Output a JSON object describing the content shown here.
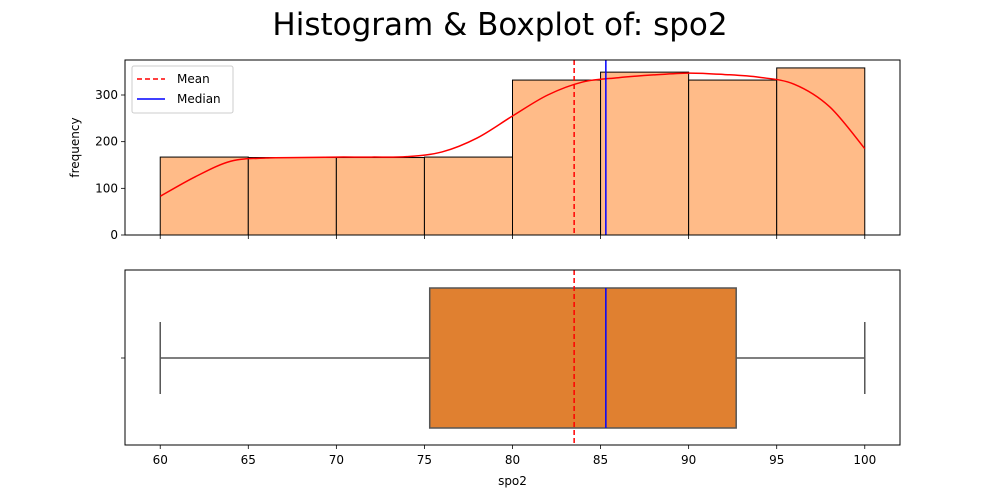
{
  "chart_data": [
    {
      "type": "bar",
      "panel": "histogram",
      "title": "Histogram & Boxplot of: spo2",
      "xlabel": "",
      "ylabel": "frequency",
      "bin_edges": [
        60,
        65,
        70,
        75,
        80,
        85,
        90,
        95,
        100
      ],
      "values": [
        167,
        166,
        166,
        167,
        332,
        349,
        332,
        358
      ],
      "xlim": [
        58,
        102
      ],
      "ylim": [
        0,
        375
      ],
      "yticks": [
        0,
        100,
        200,
        300
      ],
      "bar_color": "#ffbb88",
      "edge_color": "#000000",
      "kde": {
        "color": "#ff0000",
        "x": [
          60,
          62,
          64,
          66,
          68,
          70,
          72,
          74,
          76,
          78,
          80,
          82,
          84,
          86,
          88,
          90,
          92,
          94,
          96,
          98,
          100
        ],
        "y": [
          83,
          125,
          158,
          165,
          166,
          167,
          167,
          168,
          178,
          208,
          255,
          300,
          328,
          337,
          343,
          347,
          344,
          338,
          323,
          275,
          185
        ]
      },
      "mean": 83.5,
      "median": 85.3,
      "legend": {
        "placement": "upper-left",
        "entries": [
          {
            "label": "Mean",
            "color": "#ff0000",
            "style": "dashed"
          },
          {
            "label": "Median",
            "color": "#0000ff",
            "style": "solid"
          }
        ]
      }
    },
    {
      "type": "boxplot",
      "panel": "boxplot",
      "xlabel": "spo2",
      "xlim": [
        58,
        102
      ],
      "xticks": [
        60,
        65,
        70,
        75,
        80,
        85,
        90,
        95,
        100
      ],
      "min": 60,
      "q1": 75.3,
      "median": 85.3,
      "q3": 92.7,
      "max": 100,
      "mean": 83.5,
      "box_color": "#e08030",
      "line_color": "#555555",
      "mean_color": "#ff0000",
      "median_color": "#0000ff"
    }
  ]
}
